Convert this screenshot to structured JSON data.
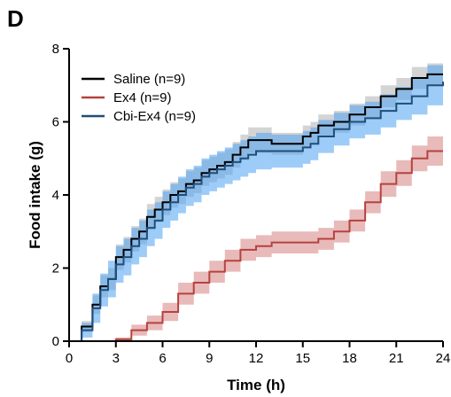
{
  "panel_label": "D",
  "chart_data": {
    "type": "line",
    "xlabel": "Time (h)",
    "ylabel": "Food intake (g)",
    "xlim": [
      0,
      24
    ],
    "ylim": [
      0,
      8
    ],
    "xticks": [
      0,
      3,
      6,
      9,
      12,
      15,
      18,
      21,
      24
    ],
    "yticks": [
      0,
      2,
      4,
      6,
      8
    ],
    "grid": false,
    "legend_position": "top-left",
    "series": [
      {
        "name": "Saline (n=9)",
        "line_color": "#000000",
        "band_color": "#b8b8b8",
        "x": [
          0,
          0.8,
          1.5,
          2,
          2.5,
          3,
          3.5,
          4,
          4.5,
          5,
          5.5,
          6,
          6.5,
          7,
          7.5,
          8,
          8.5,
          9,
          9.5,
          10,
          10.5,
          11,
          11.5,
          12,
          13,
          14,
          15,
          15.5,
          16,
          17,
          18,
          19,
          20,
          21,
          22,
          23,
          24
        ],
        "y": [
          0,
          0.4,
          1.0,
          1.5,
          1.7,
          2.3,
          2.5,
          2.8,
          3.0,
          3.4,
          3.6,
          3.8,
          4.0,
          4.1,
          4.3,
          4.4,
          4.6,
          4.7,
          4.8,
          4.9,
          5.1,
          5.3,
          5.5,
          5.5,
          5.4,
          5.4,
          5.6,
          5.7,
          5.9,
          6.0,
          6.2,
          6.4,
          6.7,
          6.9,
          7.2,
          7.3,
          7.3
        ],
        "err": [
          0,
          0.15,
          0.25,
          0.3,
          0.3,
          0.35,
          0.35,
          0.35,
          0.35,
          0.35,
          0.35,
          0.35,
          0.35,
          0.35,
          0.35,
          0.35,
          0.35,
          0.35,
          0.35,
          0.35,
          0.35,
          0.35,
          0.35,
          0.35,
          0.3,
          0.3,
          0.3,
          0.3,
          0.3,
          0.3,
          0.3,
          0.3,
          0.3,
          0.3,
          0.3,
          0.3,
          0.3
        ]
      },
      {
        "name": "Ex4 (n=9)",
        "line_color": "#b5433f",
        "band_color": "#d98c8a",
        "x": [
          0,
          2.5,
          3,
          4,
          5,
          6,
          7,
          8,
          9,
          10,
          11,
          12,
          13,
          14,
          15,
          16,
          17,
          18,
          19,
          20,
          21,
          22,
          23,
          24
        ],
        "y": [
          0,
          0,
          0.05,
          0.3,
          0.5,
          0.8,
          1.3,
          1.6,
          1.9,
          2.2,
          2.5,
          2.6,
          2.7,
          2.7,
          2.7,
          2.8,
          3.0,
          3.3,
          3.8,
          4.3,
          4.6,
          5.0,
          5.2,
          5.2
        ],
        "err": [
          0,
          0,
          0.05,
          0.15,
          0.2,
          0.25,
          0.3,
          0.3,
          0.3,
          0.3,
          0.3,
          0.3,
          0.3,
          0.3,
          0.3,
          0.3,
          0.3,
          0.3,
          0.3,
          0.35,
          0.35,
          0.35,
          0.4,
          0.4
        ]
      },
      {
        "name": "Cbi-Ex4 (n=9)",
        "line_color": "#1f4e79",
        "band_color": "#4da3f2",
        "x": [
          0,
          0.8,
          1.5,
          2,
          2.5,
          3,
          3.5,
          4,
          4.5,
          5,
          5.5,
          6,
          6.5,
          7,
          7.5,
          8,
          8.5,
          9,
          9.5,
          10,
          10.5,
          11,
          11.5,
          12,
          13,
          14,
          15,
          15.5,
          16,
          17,
          18,
          19,
          20,
          21,
          22,
          23,
          24
        ],
        "y": [
          0,
          0.3,
          0.9,
          1.4,
          1.7,
          2.1,
          2.3,
          2.6,
          2.8,
          3.1,
          3.3,
          3.6,
          3.8,
          4.0,
          4.2,
          4.3,
          4.5,
          4.6,
          4.7,
          4.8,
          4.9,
          5.0,
          5.1,
          5.2,
          5.2,
          5.2,
          5.3,
          5.4,
          5.6,
          5.8,
          6.0,
          6.1,
          6.3,
          6.5,
          6.7,
          7.0,
          7.1
        ],
        "err": [
          0,
          0.2,
          0.4,
          0.45,
          0.5,
          0.5,
          0.5,
          0.5,
          0.5,
          0.5,
          0.5,
          0.5,
          0.5,
          0.5,
          0.5,
          0.5,
          0.5,
          0.5,
          0.5,
          0.5,
          0.5,
          0.5,
          0.5,
          0.5,
          0.45,
          0.45,
          0.45,
          0.45,
          0.45,
          0.45,
          0.45,
          0.45,
          0.45,
          0.45,
          0.5,
          0.55,
          0.55
        ]
      }
    ]
  }
}
